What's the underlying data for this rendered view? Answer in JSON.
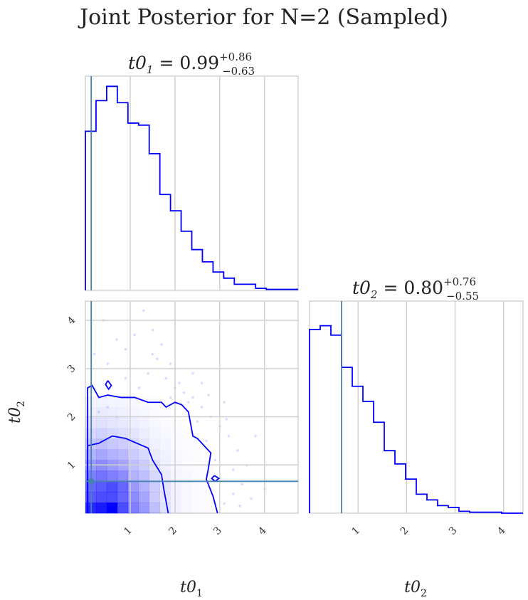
{
  "title": "Joint Posterior for N=2 (Sampled)",
  "colors": {
    "hist": "#0000ff",
    "truth": "#4682b4",
    "grid": "#d0d0d0",
    "frame": "#c8c8c8"
  },
  "chart_data": [
    {
      "panel": "t0_1 marginal",
      "type": "histogram-step",
      "title_var": "t0",
      "title_sub": "1",
      "title_eq": "=",
      "title_val": "0.99",
      "title_plus": "+0.86",
      "title_minus": "−0.63",
      "xlim": [
        0.0,
        4.75
      ],
      "ylim": [
        0,
        1.05
      ],
      "bin_edges": [
        0.0,
        0.2375,
        0.475,
        0.7125,
        0.95,
        1.1875,
        1.425,
        1.6625,
        1.9,
        2.1375,
        2.375,
        2.6125,
        2.85,
        3.0875,
        3.325,
        3.5625,
        3.8,
        4.0375,
        4.275,
        4.5125,
        4.75
      ],
      "heights": [
        0.78,
        0.93,
        1.0,
        0.92,
        0.82,
        0.81,
        0.67,
        0.47,
        0.39,
        0.29,
        0.2,
        0.14,
        0.09,
        0.06,
        0.03,
        0.03,
        0.01,
        0.005,
        0.005,
        0.005
      ],
      "truth": 0.13
    },
    {
      "panel": "t0_2 marginal",
      "type": "histogram-step",
      "title_var": "t0",
      "title_sub": "2",
      "title_eq": "=",
      "title_val": "0.80",
      "title_plus": "+0.76",
      "title_minus": "−0.55",
      "xlim": [
        0.0,
        4.4
      ],
      "ylim": [
        0,
        1.12
      ],
      "x_ticks": [
        "1",
        "2",
        "3",
        "4"
      ],
      "x_tick_values": [
        1,
        2,
        3,
        4
      ],
      "xlabel_var": "t0",
      "xlabel_sub": "2",
      "bin_edges": [
        0.0,
        0.22,
        0.44,
        0.66,
        0.88,
        1.1,
        1.32,
        1.54,
        1.76,
        1.98,
        2.2,
        2.42,
        2.64,
        2.86,
        3.08,
        3.3,
        3.52,
        3.74,
        3.96,
        4.18,
        4.4
      ],
      "heights": [
        0.97,
        0.99,
        0.94,
        0.77,
        0.67,
        0.59,
        0.48,
        0.33,
        0.26,
        0.18,
        0.1,
        0.07,
        0.04,
        0.03,
        0.01,
        0.005,
        0.005,
        0.005,
        0.0,
        0.0
      ],
      "truth": 0.66
    },
    {
      "panel": "joint t0_1 vs t0_2",
      "type": "heatmap",
      "xlim": [
        0.0,
        4.75
      ],
      "ylim": [
        0.0,
        4.4
      ],
      "x_ticks": [
        "1",
        "2",
        "3",
        "4"
      ],
      "x_tick_values": [
        1,
        2,
        3,
        4
      ],
      "y_ticks": [
        "1",
        "2",
        "3",
        "4"
      ],
      "y_tick_values": [
        1,
        2,
        3,
        4
      ],
      "xlabel_var": "t0",
      "xlabel_sub": "1",
      "ylabel_var": "t0",
      "ylabel_sub": "2",
      "cell_size": [
        0.2375,
        0.22
      ],
      "density": [
        [
          0.85,
          0.9,
          1.0,
          0.7,
          0.5,
          0.4,
          0.25,
          0.12,
          0.05,
          0.03,
          0.02,
          0.01,
          0.0,
          0.0
        ],
        [
          0.65,
          0.7,
          0.7,
          0.6,
          0.45,
          0.35,
          0.2,
          0.1,
          0.05,
          0.03,
          0.02,
          0.01,
          0.0,
          0.0
        ],
        [
          0.6,
          0.65,
          0.7,
          0.6,
          0.4,
          0.3,
          0.2,
          0.1,
          0.05,
          0.03,
          0.02,
          0.01,
          0.0,
          0.0
        ],
        [
          0.5,
          0.55,
          0.5,
          0.45,
          0.3,
          0.25,
          0.15,
          0.08,
          0.04,
          0.03,
          0.02,
          0.01,
          0.0,
          0.0
        ],
        [
          0.4,
          0.45,
          0.4,
          0.35,
          0.25,
          0.2,
          0.12,
          0.06,
          0.03,
          0.02,
          0.01,
          0.01,
          0.0,
          0.0
        ],
        [
          0.3,
          0.35,
          0.3,
          0.28,
          0.2,
          0.15,
          0.08,
          0.05,
          0.03,
          0.02,
          0.01,
          0.0,
          0.0,
          0.0
        ],
        [
          0.22,
          0.25,
          0.22,
          0.2,
          0.15,
          0.1,
          0.06,
          0.04,
          0.02,
          0.01,
          0.01,
          0.0,
          0.0,
          0.0
        ],
        [
          0.15,
          0.18,
          0.15,
          0.13,
          0.1,
          0.07,
          0.04,
          0.03,
          0.02,
          0.01,
          0.0,
          0.0,
          0.0,
          0.0
        ],
        [
          0.1,
          0.12,
          0.1,
          0.09,
          0.07,
          0.05,
          0.03,
          0.02,
          0.01,
          0.0,
          0.0,
          0.0,
          0.0,
          0.0
        ],
        [
          0.06,
          0.08,
          0.07,
          0.06,
          0.04,
          0.03,
          0.02,
          0.01,
          0.0,
          0.0,
          0.0,
          0.0,
          0.0,
          0.0
        ],
        [
          0.04,
          0.05,
          0.04,
          0.04,
          0.03,
          0.02,
          0.01,
          0.0,
          0.0,
          0.0,
          0.0,
          0.0,
          0.0,
          0.0
        ]
      ],
      "contours": [
        [
          [
            0.05,
            0.0
          ],
          [
            0.05,
            1.4
          ],
          [
            0.3,
            1.45
          ],
          [
            0.6,
            1.6
          ],
          [
            0.9,
            1.55
          ],
          [
            1.15,
            1.45
          ],
          [
            1.4,
            1.35
          ],
          [
            1.5,
            1.1
          ],
          [
            1.7,
            0.8
          ],
          [
            1.75,
            0.5
          ],
          [
            1.8,
            0.25
          ],
          [
            1.85,
            0.0
          ]
        ],
        [
          [
            0.05,
            0.0
          ],
          [
            0.05,
            2.6
          ],
          [
            0.15,
            2.65
          ],
          [
            0.3,
            2.4
          ],
          [
            0.5,
            2.45
          ],
          [
            0.8,
            2.4
          ],
          [
            1.1,
            2.4
          ],
          [
            1.4,
            2.3
          ],
          [
            1.7,
            2.3
          ],
          [
            1.8,
            2.2
          ],
          [
            2.0,
            2.3
          ],
          [
            2.15,
            2.25
          ],
          [
            2.3,
            2.1
          ],
          [
            2.35,
            1.85
          ],
          [
            2.4,
            1.6
          ],
          [
            2.5,
            1.55
          ],
          [
            2.65,
            1.4
          ],
          [
            2.8,
            1.25
          ],
          [
            2.75,
            0.95
          ],
          [
            2.7,
            0.7
          ],
          [
            2.85,
            0.35
          ],
          [
            2.95,
            0.0
          ]
        ],
        [
          [
            0.5,
            2.75
          ],
          [
            0.58,
            2.65
          ],
          [
            0.52,
            2.57
          ],
          [
            0.45,
            2.67
          ],
          [
            0.5,
            2.75
          ]
        ],
        [
          [
            2.88,
            0.78
          ],
          [
            2.98,
            0.72
          ],
          [
            2.9,
            0.66
          ],
          [
            2.82,
            0.72
          ],
          [
            2.88,
            0.78
          ]
        ]
      ],
      "scatter": [
        [
          0.3,
          2.1
        ],
        [
          0.5,
          2.2
        ],
        [
          0.7,
          2.0
        ],
        [
          0.9,
          2.8
        ],
        [
          1.0,
          3.0
        ],
        [
          1.2,
          2.6
        ],
        [
          1.4,
          2.9
        ],
        [
          1.6,
          3.2
        ],
        [
          1.8,
          2.8
        ],
        [
          2.0,
          2.6
        ],
        [
          2.2,
          2.5
        ],
        [
          2.4,
          2.4
        ],
        [
          2.6,
          2.2
        ],
        [
          2.8,
          2.0
        ],
        [
          3.0,
          1.8
        ],
        [
          3.2,
          1.6
        ],
        [
          3.4,
          1.3
        ],
        [
          3.6,
          1.0
        ],
        [
          3.5,
          0.6
        ],
        [
          3.3,
          0.4
        ],
        [
          3.1,
          0.2
        ],
        [
          2.9,
          1.1
        ],
        [
          2.7,
          1.5
        ],
        [
          2.5,
          1.9
        ],
        [
          2.3,
          2.3
        ],
        [
          2.1,
          2.7
        ],
        [
          1.9,
          3.1
        ],
        [
          1.7,
          3.5
        ],
        [
          1.5,
          3.8
        ],
        [
          1.3,
          4.2
        ],
        [
          0.9,
          3.4
        ],
        [
          0.7,
          3.6
        ],
        [
          0.5,
          3.1
        ],
        [
          0.2,
          3.3
        ],
        [
          0.4,
          4.0
        ],
        [
          1.1,
          3.7
        ],
        [
          1.9,
          2.4
        ],
        [
          2.6,
          2.7
        ],
        [
          3.1,
          2.3
        ],
        [
          3.3,
          0.9
        ],
        [
          3.7,
          0.3
        ],
        [
          4.0,
          0.5
        ],
        [
          3.8,
          1.6
        ],
        [
          2.4,
          2.9
        ],
        [
          1.5,
          3.3
        ],
        [
          2.75,
          2.45
        ],
        [
          3.15,
          1.95
        ],
        [
          3.45,
          0.15
        ]
      ],
      "truth": [
        0.13,
        0.66
      ]
    }
  ]
}
